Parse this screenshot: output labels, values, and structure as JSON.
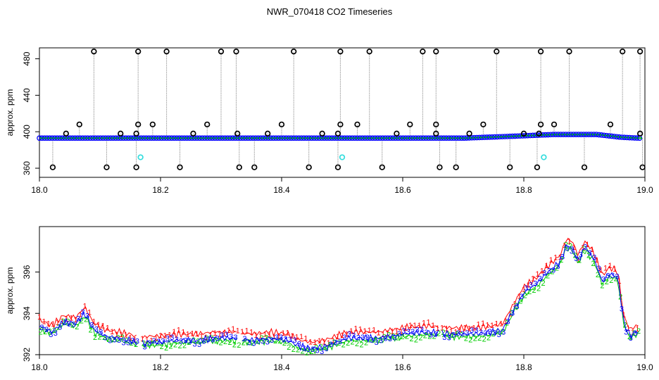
{
  "title": "NWR_070418  CO2 Timeseries",
  "chart_data": [
    {
      "type": "scatter",
      "panel": "top",
      "ylabel": "approx. ppm",
      "xlim": [
        18.0,
        19.0
      ],
      "ylim": [
        350,
        492
      ],
      "xticks": [
        "18.0",
        "18.2",
        "18.4",
        "18.6",
        "18.8",
        "19.0"
      ],
      "yticks": [
        "360",
        "400",
        "440",
        "480"
      ],
      "colors": {
        "blue": "#0000ff",
        "green": "#00cc00",
        "black": "#000000",
        "cyan": "#33dddd",
        "grey": "#9a9a9a"
      },
      "baseline": [
        [
          18.0,
          393
        ],
        [
          18.4,
          393
        ],
        [
          18.7,
          393
        ],
        [
          18.78,
          395
        ],
        [
          18.85,
          397
        ],
        [
          18.92,
          397
        ],
        [
          18.96,
          394
        ],
        [
          18.99,
          393
        ]
      ],
      "high_outliers": [
        18.09,
        18.163,
        18.21,
        18.3,
        18.325,
        18.42,
        18.497,
        18.545,
        18.633,
        18.655,
        18.755,
        18.828,
        18.875,
        18.963,
        18.992
      ],
      "high_value": 488,
      "mid_outliers": [
        [
          18.044,
          398
        ],
        [
          18.066,
          408
        ],
        [
          18.134,
          398
        ],
        [
          18.16,
          398
        ],
        [
          18.163,
          408
        ],
        [
          18.187,
          408
        ],
        [
          18.254,
          398
        ],
        [
          18.277,
          408
        ],
        [
          18.327,
          398
        ],
        [
          18.377,
          398
        ],
        [
          18.4,
          408
        ],
        [
          18.467,
          398
        ],
        [
          18.493,
          398
        ],
        [
          18.497,
          408
        ],
        [
          18.525,
          408
        ],
        [
          18.59,
          398
        ],
        [
          18.612,
          408
        ],
        [
          18.655,
          398
        ],
        [
          18.655,
          408
        ],
        [
          18.71,
          398
        ],
        [
          18.733,
          408
        ],
        [
          18.8,
          398
        ],
        [
          18.825,
          398
        ],
        [
          18.828,
          408
        ],
        [
          18.85,
          408
        ],
        [
          18.943,
          408
        ],
        [
          18.992,
          398
        ]
      ],
      "low_outliers": [
        18.022,
        18.111,
        18.16,
        18.232,
        18.33,
        18.355,
        18.445,
        18.493,
        18.566,
        18.661,
        18.688,
        18.777,
        18.822,
        18.9,
        18.996
      ],
      "low_value": 361,
      "cyan_points": [
        [
          18.167,
          372
        ],
        [
          18.5,
          372
        ],
        [
          18.833,
          372
        ]
      ]
    },
    {
      "type": "line",
      "panel": "bottom",
      "ylabel": "approx. ppm",
      "xlim": [
        18.0,
        19.0
      ],
      "ylim": [
        392,
        398.2
      ],
      "xticks": [
        "18.0",
        "18.2",
        "18.4",
        "18.6",
        "18.8",
        "19.0"
      ],
      "yticks": [
        "392",
        "394",
        "396"
      ],
      "series": [
        {
          "marker": "1",
          "color": "#ff0000",
          "offset": 0.3
        },
        {
          "marker": "2",
          "color": "#00cc00",
          "offset": -0.12
        },
        {
          "marker": "3",
          "color": "#0000ff",
          "offset": 0.0
        }
      ],
      "x": [
        18.0,
        18.02,
        18.04,
        18.06,
        18.075,
        18.09,
        18.11,
        18.13,
        18.15,
        18.165,
        18.18,
        18.2,
        18.23,
        18.26,
        18.29,
        18.32,
        18.35,
        18.38,
        18.41,
        18.43,
        18.45,
        18.47,
        18.49,
        18.51,
        18.53,
        18.56,
        18.6,
        18.64,
        18.68,
        18.72,
        18.75,
        18.765,
        18.78,
        18.8,
        18.82,
        18.84,
        18.86,
        18.87,
        18.88,
        18.89,
        18.9,
        18.915,
        18.93,
        18.94,
        18.955,
        18.965,
        18.975,
        18.985
      ],
      "y": [
        393.4,
        393.1,
        393.6,
        393.5,
        394.0,
        393.2,
        392.9,
        392.8,
        392.7,
        392.5,
        392.6,
        392.6,
        392.7,
        392.7,
        392.8,
        392.8,
        392.7,
        392.8,
        392.7,
        392.4,
        392.3,
        392.4,
        392.6,
        392.8,
        392.8,
        392.8,
        393.0,
        393.1,
        393.0,
        393.0,
        393.1,
        393.2,
        394.0,
        395.0,
        395.4,
        396.0,
        396.5,
        397.3,
        397.2,
        396.5,
        397.2,
        396.7,
        395.5,
        395.9,
        395.8,
        393.6,
        392.9,
        393.1
      ]
    }
  ]
}
